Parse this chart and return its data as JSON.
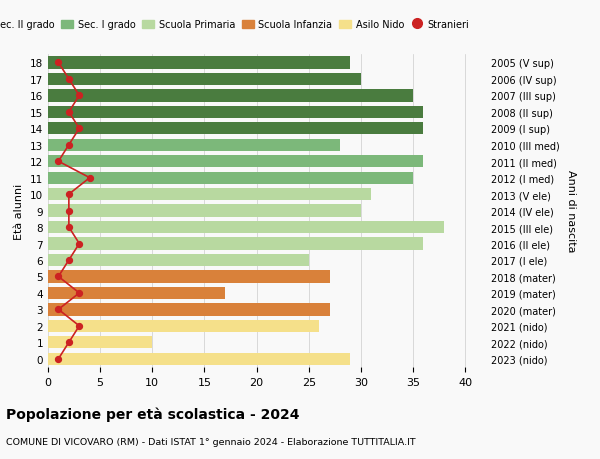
{
  "ages": [
    18,
    17,
    16,
    15,
    14,
    13,
    12,
    11,
    10,
    9,
    8,
    7,
    6,
    5,
    4,
    3,
    2,
    1,
    0
  ],
  "anni_nascita": [
    "2005 (V sup)",
    "2006 (IV sup)",
    "2007 (III sup)",
    "2008 (II sup)",
    "2009 (I sup)",
    "2010 (III med)",
    "2011 (II med)",
    "2012 (I med)",
    "2013 (V ele)",
    "2014 (IV ele)",
    "2015 (III ele)",
    "2016 (II ele)",
    "2017 (I ele)",
    "2018 (mater)",
    "2019 (mater)",
    "2020 (mater)",
    "2021 (nido)",
    "2022 (nido)",
    "2023 (nido)"
  ],
  "bar_values": [
    29,
    30,
    35,
    36,
    36,
    28,
    36,
    35,
    31,
    30,
    38,
    36,
    25,
    27,
    17,
    27,
    26,
    10,
    29
  ],
  "bar_colors": [
    "#4a7c3f",
    "#4a7c3f",
    "#4a7c3f",
    "#4a7c3f",
    "#4a7c3f",
    "#7cb87a",
    "#7cb87a",
    "#7cb87a",
    "#b8d9a0",
    "#b8d9a0",
    "#b8d9a0",
    "#b8d9a0",
    "#b8d9a0",
    "#d9813a",
    "#d9813a",
    "#d9813a",
    "#f5e08a",
    "#f5e08a",
    "#f5e08a"
  ],
  "stranieri_values": [
    1,
    2,
    3,
    2,
    3,
    2,
    1,
    4,
    2,
    2,
    2,
    3,
    2,
    1,
    3,
    1,
    3,
    2,
    1
  ],
  "legend_labels": [
    "Sec. II grado",
    "Sec. I grado",
    "Scuola Primaria",
    "Scuola Infanzia",
    "Asilo Nido",
    "Stranieri"
  ],
  "legend_colors": [
    "#4a7c3f",
    "#7cb87a",
    "#b8d9a0",
    "#d9813a",
    "#f5e08a",
    "#cc2222"
  ],
  "title": "Popolazione per età scolastica - 2024",
  "subtitle": "COMUNE DI VICOVARO (RM) - Dati ISTAT 1° gennaio 2024 - Elaborazione TUTTITALIA.IT",
  "ylabel_left": "Età alunni",
  "ylabel_right": "Anni di nascita",
  "xlim": [
    0,
    42
  ],
  "grid_color": "#cccccc",
  "bg_color": "#f9f9f9"
}
